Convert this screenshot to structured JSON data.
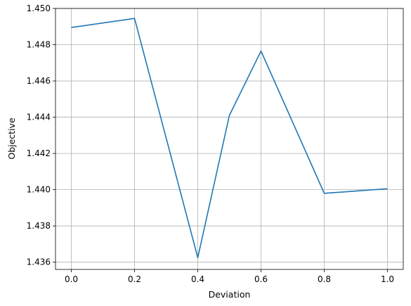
{
  "chart_data": {
    "type": "line",
    "title": "",
    "xlabel": "Deviation",
    "ylabel": "Objective",
    "xlim": [
      -0.05,
      1.05
    ],
    "ylim": [
      1.4356,
      1.45
    ],
    "grid": true,
    "x_ticks": [
      0.0,
      0.2,
      0.4,
      0.6,
      0.8,
      1.0
    ],
    "x_tick_labels": [
      "0.0",
      "0.2",
      "0.4",
      "0.6",
      "0.8",
      "1.0"
    ],
    "y_ticks": [
      1.436,
      1.438,
      1.44,
      1.442,
      1.444,
      1.446,
      1.448,
      1.45
    ],
    "y_tick_labels": [
      "1.436",
      "1.438",
      "1.440",
      "1.442",
      "1.444",
      "1.446",
      "1.448",
      "1.450"
    ],
    "series": [
      {
        "color": "#1f77b4",
        "x": [
          0.0,
          0.2,
          0.4,
          0.5,
          0.6,
          0.8,
          1.0
        ],
        "y": [
          1.44895,
          1.44945,
          1.43625,
          1.4441,
          1.44765,
          1.4398,
          1.44005
        ]
      }
    ]
  }
}
